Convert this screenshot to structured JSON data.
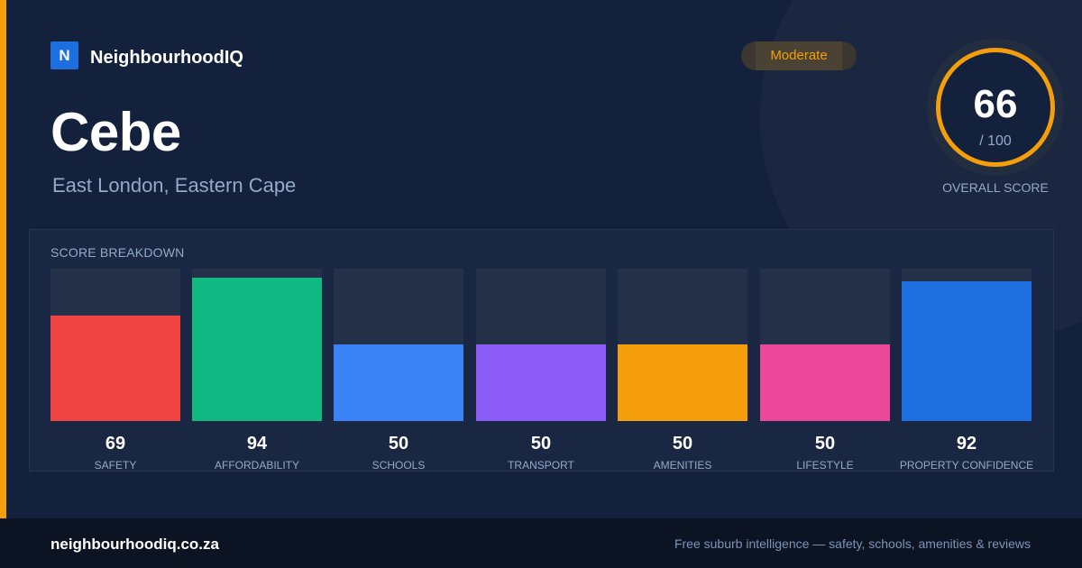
{
  "brand": {
    "logo_letter": "N",
    "name": "NeighbourhoodIQ"
  },
  "suburb": {
    "name": "Cebe",
    "location": "East London, Eastern Cape"
  },
  "rating": {
    "label": "Moderate",
    "color": "#f59e0b"
  },
  "overall": {
    "score": "66",
    "max": "/ 100",
    "label": "OVERALL SCORE"
  },
  "breakdown": {
    "title": "SCORE BREAKDOWN",
    "items": [
      {
        "label": "SAFETY",
        "value": "69",
        "color": "#ef4444"
      },
      {
        "label": "AFFORDABILITY",
        "value": "94",
        "color": "#10b981"
      },
      {
        "label": "SCHOOLS",
        "value": "50",
        "color": "#3b82f6"
      },
      {
        "label": "TRANSPORT",
        "value": "50",
        "color": "#8b5cf6"
      },
      {
        "label": "AMENITIES",
        "value": "50",
        "color": "#f59e0b"
      },
      {
        "label": "LIFESTYLE",
        "value": "50",
        "color": "#ec4899"
      },
      {
        "label": "PROPERTY CONFIDENCE",
        "value": "92",
        "color": "#1d6fe0"
      }
    ]
  },
  "footer": {
    "url": "neighbourhoodiq.co.za",
    "tagline": "Free suburb intelligence — safety, schools, amenities & reviews"
  }
}
